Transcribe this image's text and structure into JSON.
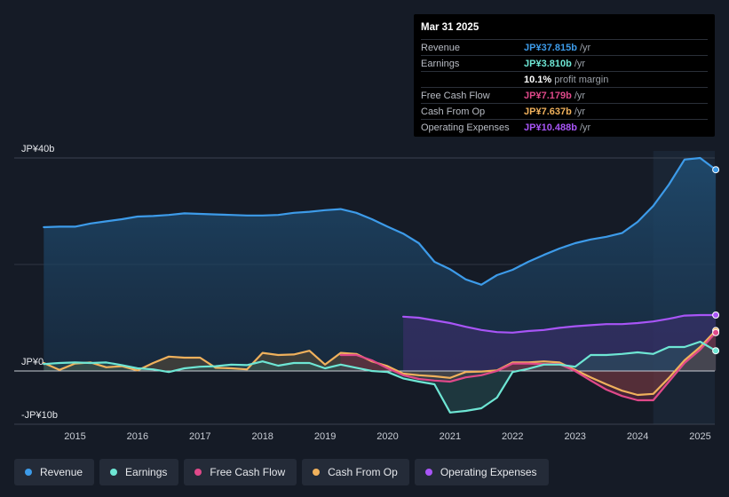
{
  "tooltip": {
    "date": "Mar 31 2025",
    "rows": [
      {
        "label": "Revenue",
        "value": "JP¥37.815b",
        "suffix": "/yr",
        "color": "#3d9be9"
      },
      {
        "label": "Earnings",
        "value": "JP¥3.810b",
        "suffix": "/yr",
        "color": "#6ee6d4"
      },
      {
        "label": "",
        "value": "10.1%",
        "suffix": "profit margin",
        "color": "#ffffff"
      },
      {
        "label": "Free Cash Flow",
        "value": "JP¥7.179b",
        "suffix": "/yr",
        "color": "#e0498a"
      },
      {
        "label": "Cash From Op",
        "value": "JP¥7.637b",
        "suffix": "/yr",
        "color": "#f0b15c"
      },
      {
        "label": "Operating Expenses",
        "value": "JP¥10.488b",
        "suffix": "/yr",
        "color": "#a855f7"
      }
    ]
  },
  "legend": [
    {
      "label": "Revenue",
      "color": "#3d9be9"
    },
    {
      "label": "Earnings",
      "color": "#6ee6d4"
    },
    {
      "label": "Free Cash Flow",
      "color": "#e0498a"
    },
    {
      "label": "Cash From Op",
      "color": "#f0b15c"
    },
    {
      "label": "Operating Expenses",
      "color": "#a855f7"
    }
  ],
  "chart_data": {
    "type": "area",
    "title": "",
    "xlabel": "",
    "ylabel": "",
    "unit": "JP¥ billions",
    "xlim": [
      2014.45,
      2025.25
    ],
    "ylim": [
      -10,
      40
    ],
    "y_tick_labels": [
      {
        "value": 40,
        "label": "JP¥40b"
      },
      {
        "value": 0,
        "label": "JP¥0"
      },
      {
        "value": -10,
        "label": "-JP¥10b"
      }
    ],
    "x_ticks": [
      2015,
      2016,
      2017,
      2018,
      2019,
      2020,
      2021,
      2022,
      2023,
      2024,
      2025
    ],
    "x_tick_labels": [
      "2015",
      "2016",
      "2017",
      "2018",
      "2019",
      "2020",
      "2021",
      "2022",
      "2023",
      "2024",
      "2025"
    ],
    "highlight_from": 2024.25,
    "series": [
      {
        "name": "Revenue",
        "color": "#3d9be9",
        "x": [
          2014.5,
          2014.75,
          2015.0,
          2015.25,
          2015.5,
          2015.75,
          2016.0,
          2016.25,
          2016.5,
          2016.75,
          2017.0,
          2017.25,
          2017.5,
          2017.75,
          2018.0,
          2018.25,
          2018.5,
          2018.75,
          2019.0,
          2019.25,
          2019.5,
          2019.75,
          2020.0,
          2020.25,
          2020.5,
          2020.75,
          2021.0,
          2021.25,
          2021.5,
          2021.75,
          2022.0,
          2022.25,
          2022.5,
          2022.75,
          2023.0,
          2023.25,
          2023.5,
          2023.75,
          2024.0,
          2024.25,
          2024.5,
          2024.75,
          2025.0,
          2025.25
        ],
        "values": [
          27.0,
          27.1,
          27.1,
          27.7,
          28.1,
          28.5,
          29.0,
          29.1,
          29.3,
          29.6,
          29.5,
          29.4,
          29.3,
          29.2,
          29.2,
          29.3,
          29.7,
          29.9,
          30.2,
          30.4,
          29.7,
          28.5,
          27.1,
          25.8,
          24.0,
          20.5,
          19.1,
          17.2,
          16.2,
          18.0,
          19.0,
          20.5,
          21.8,
          23.0,
          24.0,
          24.7,
          25.2,
          25.9,
          28.0,
          31.0,
          35.0,
          39.7,
          40.0,
          37.8
        ]
      },
      {
        "name": "Earnings",
        "color": "#6ee6d4",
        "x": [
          2014.5,
          2014.75,
          2015.0,
          2015.25,
          2015.5,
          2015.75,
          2016.0,
          2016.25,
          2016.5,
          2016.75,
          2017.0,
          2017.25,
          2017.5,
          2017.75,
          2018.0,
          2018.25,
          2018.5,
          2018.75,
          2019.0,
          2019.25,
          2019.5,
          2019.75,
          2020.0,
          2020.25,
          2020.5,
          2020.75,
          2021.0,
          2021.25,
          2021.5,
          2021.75,
          2022.0,
          2022.25,
          2022.5,
          2022.75,
          2023.0,
          2023.25,
          2023.5,
          2023.75,
          2024.0,
          2024.25,
          2024.5,
          2024.75,
          2025.0,
          2025.25
        ],
        "values": [
          1.3,
          1.5,
          1.6,
          1.5,
          1.6,
          1.1,
          0.5,
          0.3,
          -0.2,
          0.5,
          0.8,
          0.9,
          1.2,
          1.1,
          1.8,
          1.0,
          1.5,
          1.5,
          0.5,
          1.2,
          0.6,
          0.0,
          -0.2,
          -1.4,
          -2.0,
          -2.5,
          -7.8,
          -7.5,
          -7.0,
          -5.0,
          -0.2,
          0.4,
          1.2,
          1.2,
          0.8,
          3.0,
          3.0,
          3.2,
          3.5,
          3.2,
          4.5,
          4.5,
          5.5,
          3.8
        ]
      },
      {
        "name": "Free Cash Flow",
        "color": "#e0498a",
        "x": [
          2019.25,
          2019.5,
          2019.75,
          2020.0,
          2020.25,
          2020.5,
          2020.75,
          2021.0,
          2021.25,
          2021.5,
          2021.75,
          2022.0,
          2022.25,
          2022.5,
          2022.75,
          2023.0,
          2023.25,
          2023.5,
          2023.75,
          2024.0,
          2024.25,
          2024.5,
          2024.75,
          2025.0,
          2025.25
        ],
        "values": [
          3.0,
          3.0,
          2.0,
          0.5,
          -0.8,
          -1.5,
          -1.8,
          -2.0,
          -1.2,
          -0.8,
          0.0,
          1.4,
          1.4,
          1.3,
          1.3,
          0.0,
          -1.8,
          -3.5,
          -4.7,
          -5.5,
          -5.5,
          -2.0,
          1.5,
          4.0,
          7.2
        ]
      },
      {
        "name": "Cash From Op",
        "color": "#f0b15c",
        "x": [
          2014.5,
          2014.75,
          2015.0,
          2015.25,
          2015.5,
          2015.75,
          2016.0,
          2016.25,
          2016.5,
          2016.75,
          2017.0,
          2017.25,
          2017.5,
          2017.75,
          2018.0,
          2018.25,
          2018.5,
          2018.75,
          2019.0,
          2019.25,
          2019.5,
          2019.75,
          2020.0,
          2020.25,
          2020.5,
          2020.75,
          2021.0,
          2021.25,
          2021.5,
          2021.75,
          2022.0,
          2022.25,
          2022.5,
          2022.75,
          2023.0,
          2023.25,
          2023.5,
          2023.75,
          2024.0,
          2024.25,
          2024.5,
          2024.75,
          2025.0,
          2025.25
        ],
        "values": [
          1.5,
          0.2,
          1.4,
          1.6,
          0.7,
          0.9,
          0.1,
          1.5,
          2.7,
          2.5,
          2.5,
          0.6,
          0.5,
          0.3,
          3.4,
          3.0,
          3.1,
          3.8,
          1.2,
          3.4,
          3.2,
          1.8,
          0.9,
          -0.5,
          -0.8,
          -1.0,
          -1.3,
          -0.2,
          -0.1,
          0.1,
          1.6,
          1.6,
          1.8,
          1.6,
          0.2,
          -1.2,
          -2.5,
          -3.7,
          -4.5,
          -4.3,
          -1.3,
          2.0,
          4.5,
          7.6
        ]
      },
      {
        "name": "Operating Expenses",
        "color": "#a855f7",
        "x": [
          2020.25,
          2020.5,
          2020.75,
          2021.0,
          2021.25,
          2021.5,
          2021.75,
          2022.0,
          2022.25,
          2022.5,
          2022.75,
          2023.0,
          2023.25,
          2023.5,
          2023.75,
          2024.0,
          2024.25,
          2024.5,
          2024.75,
          2025.0,
          2025.25
        ],
        "values": [
          10.2,
          10.0,
          9.5,
          9.0,
          8.3,
          7.7,
          7.3,
          7.2,
          7.5,
          7.7,
          8.1,
          8.4,
          8.6,
          8.8,
          8.8,
          9.0,
          9.3,
          9.8,
          10.4,
          10.5,
          10.5
        ]
      }
    ]
  }
}
